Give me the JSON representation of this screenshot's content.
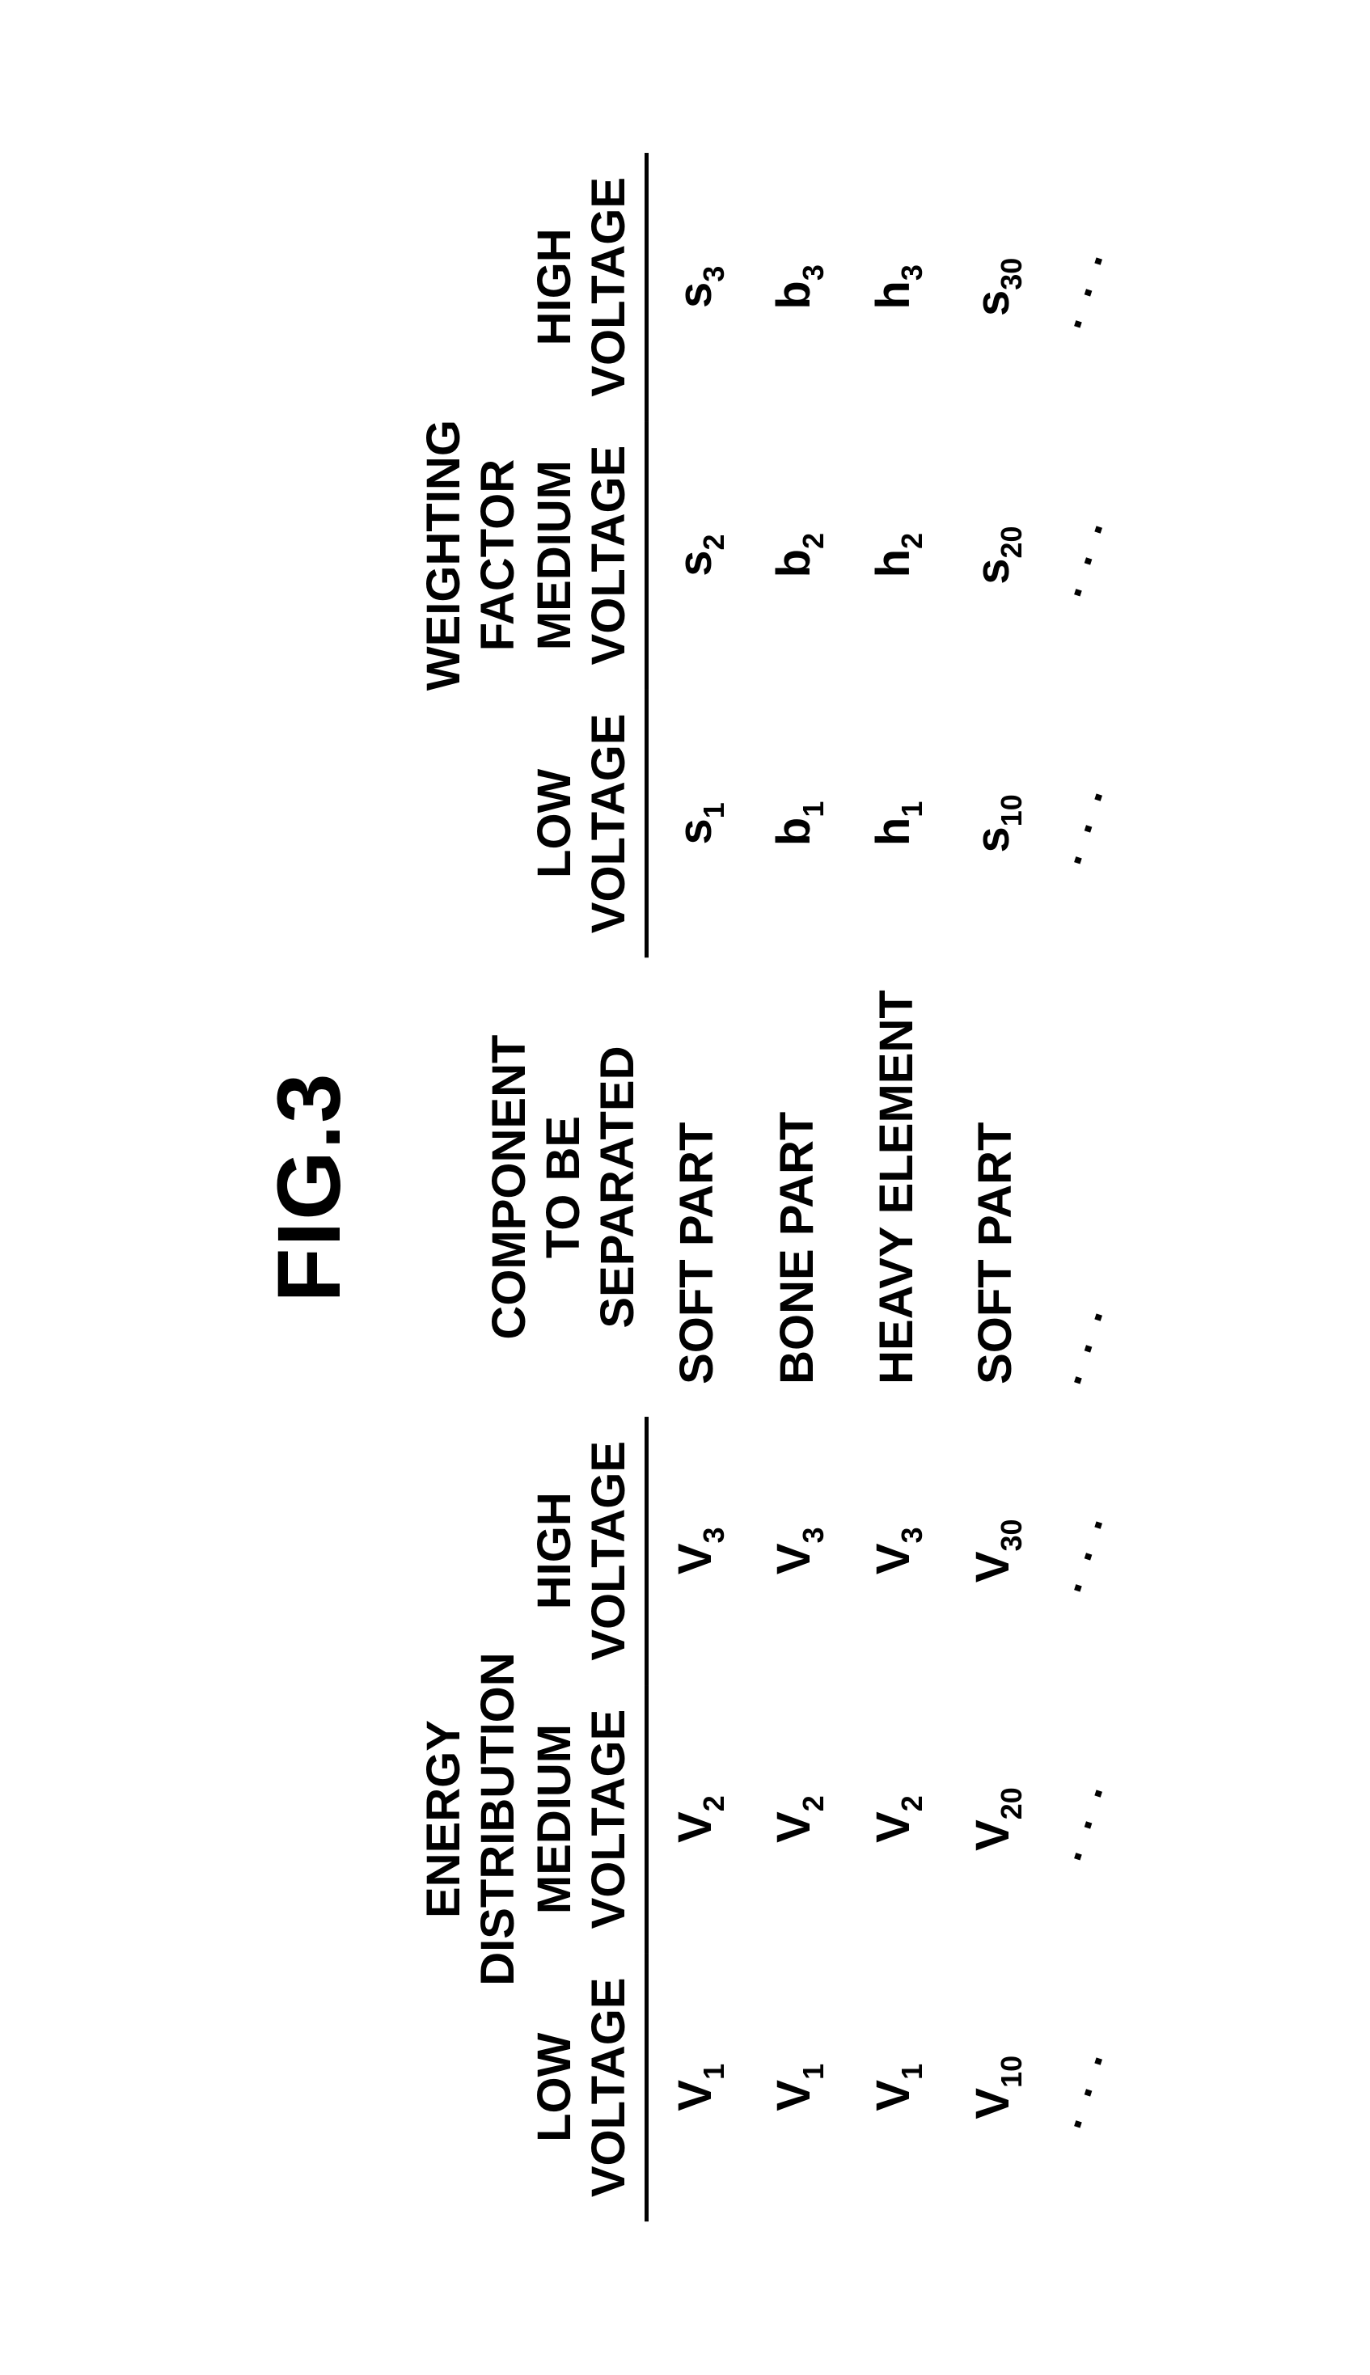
{
  "title": "FIG.3",
  "group_headers": {
    "energy": "ENERGY\nDISTRIBUTION",
    "component": "COMPONENT\nTO BE SEPARATED",
    "weighting": "WEIGHTING\nFACTOR"
  },
  "sub_headers": {
    "low_voltage": "LOW\nVOLTAGE",
    "medium_voltage": "MEDIUM\nVOLTAGE",
    "high_voltage": "HIGH\nVOLTAGE"
  },
  "rows": [
    {
      "ev_low_base": "V",
      "ev_low_sub": "1",
      "ev_med_base": "V",
      "ev_med_sub": "2",
      "ev_high_base": "V",
      "ev_high_sub": "3",
      "component": "SOFT PART",
      "wf_low_base": "s",
      "wf_low_sub": "1",
      "wf_med_base": "s",
      "wf_med_sub": "2",
      "wf_high_base": "s",
      "wf_high_sub": "3"
    },
    {
      "ev_low_base": "V",
      "ev_low_sub": "1",
      "ev_med_base": "V",
      "ev_med_sub": "2",
      "ev_high_base": "V",
      "ev_high_sub": "3",
      "component": "BONE PART",
      "wf_low_base": "b",
      "wf_low_sub": "1",
      "wf_med_base": "b",
      "wf_med_sub": "2",
      "wf_high_base": "b",
      "wf_high_sub": "3"
    },
    {
      "ev_low_base": "V",
      "ev_low_sub": "1",
      "ev_med_base": "V",
      "ev_med_sub": "2",
      "ev_high_base": "V",
      "ev_high_sub": "3",
      "component": "HEAVY ELEMENT",
      "wf_low_base": "h",
      "wf_low_sub": "1",
      "wf_med_base": "h",
      "wf_med_sub": "2",
      "wf_high_base": "h",
      "wf_high_sub": "3"
    },
    {
      "ev_low_base": "V",
      "ev_low_sub": "10",
      "ev_med_base": "V",
      "ev_med_sub": "20",
      "ev_high_base": "V",
      "ev_high_sub": "30",
      "component": "SOFT PART",
      "wf_low_base": "s",
      "wf_low_sub": "10",
      "wf_med_base": "s",
      "wf_med_sub": "20",
      "wf_high_base": "s",
      "wf_high_sub": "30"
    }
  ],
  "continuation": ". . ."
}
